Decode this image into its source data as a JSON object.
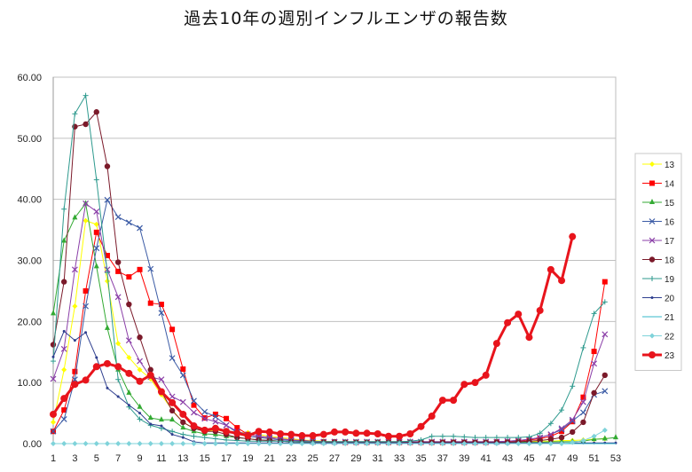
{
  "chart_data": {
    "type": "line",
    "title": "過去10年の週別インフルエンザの報告数",
    "xlabel": "",
    "ylabel": "",
    "ylim": [
      0,
      60
    ],
    "yticks": [
      "0.00",
      "10.00",
      "20.00",
      "30.00",
      "40.00",
      "50.00",
      "60.00"
    ],
    "xlim": [
      1,
      53
    ],
    "xticks": [
      1,
      3,
      5,
      7,
      9,
      11,
      13,
      15,
      17,
      19,
      21,
      23,
      25,
      27,
      29,
      31,
      33,
      35,
      37,
      39,
      41,
      43,
      45,
      47,
      49,
      51,
      53
    ],
    "grid": true,
    "legend_position": "right",
    "series": [
      {
        "name": "13",
        "color": "#ffff00",
        "marker": "diamond",
        "width": 1,
        "values": [
          3.5,
          12.1,
          22.5,
          36.5,
          35.9,
          26.6,
          16.4,
          14.1,
          12.1,
          10.6,
          8.0,
          5.5,
          3.5,
          2.5,
          2.0,
          2.2,
          2.0,
          1.8,
          1.8,
          1.5,
          1.2,
          1.0,
          0.8,
          0.6,
          0.5,
          0.4,
          0.3,
          0.3,
          0.3,
          0.3,
          0.3,
          0.3,
          0.3,
          0.3,
          0.3,
          0.3,
          0.3,
          0.3,
          0.3,
          0.3,
          0.3,
          0.3,
          0.3,
          0.3,
          0.3,
          0.4,
          0.4,
          0.5,
          0.5,
          0.6,
          0.7,
          0.8,
          null
        ]
      },
      {
        "name": "14",
        "color": "#ff0000",
        "marker": "square",
        "width": 1,
        "values": [
          2.0,
          5.5,
          11.8,
          25.0,
          34.6,
          30.8,
          28.2,
          27.3,
          28.5,
          23.0,
          22.8,
          18.7,
          12.2,
          6.3,
          4.2,
          4.8,
          4.1,
          2.6,
          1.5,
          1.2,
          1.0,
          0.8,
          0.6,
          0.5,
          0.4,
          0.3,
          0.3,
          0.2,
          0.2,
          0.2,
          0.2,
          0.2,
          0.2,
          0.2,
          0.2,
          0.2,
          0.2,
          0.2,
          0.2,
          0.2,
          0.2,
          0.3,
          0.3,
          0.4,
          0.6,
          0.8,
          1.2,
          2.0,
          3.6,
          7.6,
          15.1,
          26.5,
          null
        ]
      },
      {
        "name": "15",
        "color": "#33aa33",
        "marker": "triangle",
        "width": 1,
        "values": [
          21.3,
          33.2,
          37.0,
          39.3,
          29.0,
          18.9,
          12.1,
          8.3,
          6.0,
          4.2,
          3.9,
          3.9,
          2.6,
          2.0,
          1.6,
          1.5,
          1.2,
          1.0,
          0.8,
          0.6,
          0.5,
          0.4,
          0.3,
          0.2,
          0.2,
          0.2,
          0.2,
          0.2,
          0.2,
          0.2,
          0.2,
          0.2,
          0.2,
          0.2,
          0.2,
          0.2,
          0.2,
          0.2,
          0.2,
          0.2,
          0.2,
          0.2,
          0.2,
          0.2,
          0.2,
          0.2,
          0.3,
          0.3,
          0.3,
          0.4,
          0.7,
          0.8,
          1.0
        ]
      },
      {
        "name": "16",
        "color": "#3b5ba5",
        "marker": "x",
        "width": 1,
        "values": [
          2.0,
          4.0,
          10.5,
          22.5,
          32.0,
          39.9,
          37.1,
          36.2,
          35.3,
          28.6,
          21.4,
          14.0,
          11.2,
          7.0,
          5.2,
          4.4,
          3.0,
          1.8,
          1.2,
          1.0,
          0.8,
          0.6,
          0.5,
          0.4,
          0.3,
          0.3,
          0.3,
          0.3,
          0.3,
          0.3,
          0.3,
          0.3,
          0.3,
          0.3,
          0.3,
          0.3,
          0.3,
          0.3,
          0.3,
          0.3,
          0.3,
          0.3,
          0.4,
          0.5,
          0.7,
          1.0,
          1.5,
          2.3,
          3.7,
          5.1,
          8.0,
          8.6,
          null
        ]
      },
      {
        "name": "17",
        "color": "#8b3fa8",
        "marker": "x",
        "width": 1,
        "values": [
          10.6,
          15.5,
          28.5,
          39.3,
          38.0,
          28.5,
          24.0,
          16.9,
          13.5,
          10.9,
          10.5,
          7.7,
          6.8,
          5.1,
          4.1,
          3.6,
          3.0,
          2.0,
          1.5,
          1.2,
          1.0,
          0.8,
          0.6,
          0.5,
          0.4,
          0.3,
          0.3,
          0.3,
          0.3,
          0.3,
          0.3,
          0.3,
          0.3,
          0.3,
          0.3,
          0.3,
          0.3,
          0.3,
          0.3,
          0.3,
          0.3,
          0.3,
          0.4,
          0.5,
          0.7,
          1.0,
          1.5,
          2.5,
          3.9,
          6.8,
          13.1,
          17.9,
          null
        ]
      },
      {
        "name": "18",
        "color": "#7b1a2a",
        "marker": "circle",
        "width": 1,
        "values": [
          16.2,
          26.5,
          51.9,
          52.3,
          54.3,
          45.4,
          29.7,
          22.8,
          17.4,
          12.1,
          8.5,
          5.4,
          3.5,
          2.5,
          2.0,
          2.0,
          1.5,
          1.0,
          0.8,
          0.6,
          0.5,
          0.4,
          0.3,
          0.3,
          0.2,
          0.2,
          0.2,
          0.2,
          0.2,
          0.2,
          0.2,
          0.2,
          0.2,
          0.2,
          0.2,
          0.2,
          0.2,
          0.2,
          0.2,
          0.2,
          0.2,
          0.2,
          0.2,
          0.3,
          0.4,
          0.5,
          0.7,
          1.0,
          1.9,
          3.5,
          8.3,
          11.2,
          null
        ]
      },
      {
        "name": "19",
        "color": "#2e9a8e",
        "marker": "plus",
        "width": 1,
        "values": [
          13.5,
          38.4,
          54.0,
          57.0,
          43.2,
          28.0,
          10.5,
          6.0,
          4.0,
          3.0,
          2.5,
          2.0,
          1.5,
          1.2,
          1.0,
          0.8,
          0.6,
          0.5,
          0.4,
          0.4,
          0.4,
          0.4,
          0.3,
          0.3,
          0.3,
          0.3,
          0.3,
          0.3,
          0.3,
          0.3,
          0.3,
          0.3,
          0.3,
          0.4,
          0.6,
          1.2,
          1.2,
          1.2,
          1.1,
          1.0,
          1.0,
          1.0,
          1.0,
          1.0,
          1.1,
          1.7,
          3.3,
          5.5,
          9.4,
          15.7,
          21.3,
          23.2,
          null
        ]
      },
      {
        "name": "20",
        "color": "#2f3f8f",
        "marker": "dot",
        "width": 1,
        "values": [
          14.2,
          18.4,
          16.9,
          18.2,
          14.1,
          9.1,
          7.7,
          6.3,
          5.0,
          3.2,
          2.9,
          1.5,
          1.0,
          0.3,
          0.1,
          0.1,
          0.1,
          0.1,
          0.1,
          0.1,
          0.1,
          0.1,
          0.1,
          0.1,
          0.1,
          0.1,
          0.1,
          0.1,
          0.1,
          0.1,
          0.1,
          0.1,
          0.1,
          0.1,
          0.1,
          0.1,
          0.1,
          0.1,
          0.1,
          0.1,
          0.1,
          0.1,
          0.1,
          0.1,
          0.1,
          0.1,
          0.1,
          0.1,
          0.1,
          0.1,
          0.1,
          0.1,
          0.1
        ]
      },
      {
        "name": "21",
        "color": "#36b8c8",
        "marker": "none",
        "width": 1,
        "values": [
          0,
          0,
          0,
          0,
          0,
          0,
          0,
          0,
          0,
          0,
          0,
          0,
          0,
          0,
          0,
          0,
          0,
          0,
          0,
          0,
          0,
          0,
          0,
          0,
          0,
          0,
          0,
          0,
          0,
          0,
          0,
          0,
          0,
          0,
          0,
          0,
          0,
          0,
          0,
          0,
          0,
          0,
          0,
          0,
          0,
          0,
          0,
          0,
          0,
          0,
          0,
          0,
          0
        ]
      },
      {
        "name": "22",
        "color": "#7fd3da",
        "marker": "diamond",
        "width": 1,
        "values": [
          0,
          0,
          0,
          0,
          0,
          0,
          0,
          0,
          0,
          0,
          0,
          0,
          0,
          0,
          0,
          0,
          0,
          0,
          0,
          0,
          0,
          0,
          0,
          0,
          0,
          0,
          0,
          0,
          0,
          0,
          0,
          0,
          0,
          0,
          0,
          0,
          0,
          0,
          0,
          0,
          0,
          0,
          0,
          0,
          0,
          0,
          0,
          0,
          0.2,
          0.5,
          1.2,
          2.2,
          null
        ]
      },
      {
        "name": "23",
        "color": "#e8141c",
        "marker": "circle",
        "width": 3,
        "values": [
          4.8,
          7.4,
          9.7,
          10.4,
          12.6,
          13.1,
          12.6,
          11.5,
          10.2,
          11.2,
          8.5,
          6.7,
          4.8,
          2.9,
          2.2,
          2.5,
          2.0,
          1.7,
          1.3,
          2.0,
          1.9,
          1.6,
          1.5,
          1.3,
          1.3,
          1.5,
          1.9,
          1.9,
          1.7,
          1.7,
          1.6,
          1.2,
          1.2,
          1.6,
          2.8,
          4.5,
          7.1,
          7.1,
          9.7,
          10.0,
          11.2,
          16.4,
          19.8,
          21.2,
          17.4,
          21.8,
          28.5,
          26.7,
          33.9,
          null,
          null,
          null,
          null
        ]
      }
    ]
  }
}
